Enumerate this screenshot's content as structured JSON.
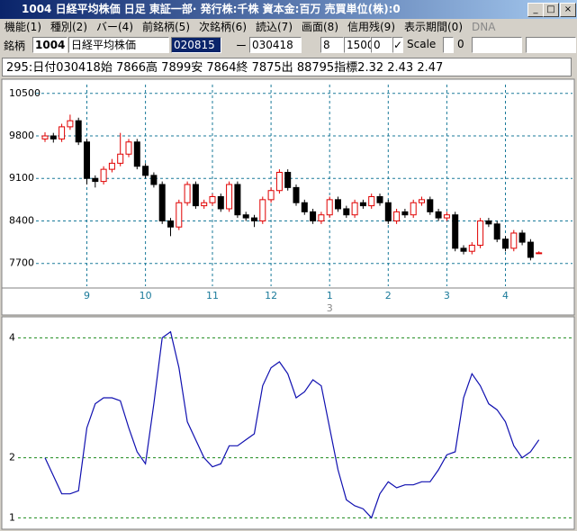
{
  "window": {
    "title": "1004 日経平均株価  日足  東証一部·  発行株:千株  資本金:百万  売買単位(株):0",
    "menu": [
      "機能(1)",
      "種別(2)",
      "バー(4)",
      "前銘柄(5)",
      "次銘柄(6)",
      "読込(7)",
      "画面(8)",
      "信用残(9)",
      "表示期間(0)",
      "DNA"
    ],
    "toolbar": {
      "label": "銘柄",
      "code": "1004",
      "name": "日経平均株価",
      "from": "020815",
      "dash": "ー",
      "to": "030418",
      "f1": "8",
      "f2": "1500",
      "f3": "0",
      "scale": "Scale",
      "f4": "0"
    },
    "info": "295:日付030418始 7866高 7899安 7864終 7875出 88795指標2.32  2.43  2.47"
  },
  "chart_data": [
    {
      "type": "candlestick",
      "up_color": "#e00000",
      "down_color": "#000000",
      "grid": true,
      "grid_color": "#1a7a9a",
      "categories": [
        null,
        null,
        null,
        null,
        null,
        "9",
        null,
        null,
        null,
        null,
        null,
        null,
        "10",
        null,
        null,
        null,
        null,
        null,
        null,
        null,
        "11",
        null,
        null,
        null,
        null,
        null,
        null,
        "12",
        null,
        null,
        null,
        null,
        null,
        null,
        "1",
        null,
        null,
        null,
        null,
        null,
        null,
        "2",
        null,
        null,
        null,
        null,
        null,
        null,
        "3",
        null,
        null,
        null,
        null,
        null,
        null,
        "4",
        null,
        null,
        null,
        null
      ],
      "x_sublabel": "3",
      "open": [
        9750,
        9800,
        9750,
        9950,
        10050,
        9700,
        9100,
        9050,
        9250,
        9350,
        9500,
        9700,
        9300,
        9150,
        9000,
        8400,
        8300,
        8700,
        9000,
        8650,
        8700,
        8800,
        8600,
        9000,
        8500,
        8450,
        8400,
        8750,
        8900,
        9200,
        8950,
        8700,
        8550,
        8400,
        8500,
        8750,
        8600,
        8500,
        8700,
        8650,
        8800,
        8700,
        8400,
        8550,
        8500,
        8700,
        8750,
        8550,
        8450,
        8500,
        7950,
        7900,
        8000,
        8400,
        8350,
        8100,
        7950,
        8200,
        8050,
        7866
      ],
      "high": [
        9860,
        9850,
        10000,
        10150,
        10100,
        9750,
        9150,
        9300,
        9420,
        9850,
        9750,
        9750,
        9350,
        9200,
        9050,
        8450,
        8750,
        9050,
        9050,
        8750,
        8850,
        8850,
        9050,
        9050,
        8550,
        8500,
        8800,
        8950,
        9250,
        9250,
        9000,
        8750,
        8600,
        8550,
        8800,
        8800,
        8650,
        8750,
        8750,
        8850,
        8850,
        8750,
        8600,
        8600,
        8750,
        8800,
        8800,
        8600,
        8550,
        8550,
        8000,
        8050,
        8450,
        8450,
        8400,
        8150,
        8250,
        8250,
        8100,
        7899
      ],
      "low": [
        9700,
        9690,
        9700,
        9900,
        9650,
        9000,
        8950,
        9000,
        9200,
        9300,
        9450,
        9250,
        9100,
        8950,
        8350,
        8150,
        8250,
        8650,
        8600,
        8600,
        8650,
        8550,
        8550,
        8450,
        8400,
        8300,
        8350,
        8700,
        8850,
        8900,
        8650,
        8500,
        8350,
        8350,
        8450,
        8550,
        8450,
        8450,
        8600,
        8600,
        8650,
        8350,
        8350,
        8450,
        8450,
        8650,
        8500,
        8400,
        8400,
        7900,
        7850,
        7850,
        7950,
        8300,
        8050,
        7900,
        7900,
        8000,
        7750,
        7864
      ],
      "close": [
        9800,
        9750,
        9950,
        10050,
        9700,
        9100,
        9050,
        9250,
        9350,
        9500,
        9700,
        9300,
        9150,
        9000,
        8400,
        8300,
        8700,
        9000,
        8650,
        8700,
        8800,
        8600,
        9000,
        8500,
        8450,
        8400,
        8750,
        8900,
        9200,
        8950,
        8700,
        8550,
        8400,
        8500,
        8750,
        8600,
        8500,
        8700,
        8650,
        8800,
        8700,
        8400,
        8550,
        8500,
        8700,
        8750,
        8550,
        8450,
        8500,
        7950,
        7900,
        8000,
        8400,
        8350,
        8100,
        7950,
        8200,
        8050,
        7800,
        7875
      ],
      "ylim": [
        7325,
        10645
      ],
      "yticks": [
        7700,
        8400,
        9100,
        9800,
        10500
      ]
    },
    {
      "type": "line",
      "color": "#1010b0",
      "grid": true,
      "grid_color": "#1a8a1a",
      "values": [
        2.0,
        1.7,
        1.4,
        1.4,
        1.45,
        2.5,
        2.9,
        3.0,
        3.0,
        2.95,
        2.5,
        2.1,
        1.9,
        2.9,
        4.0,
        4.1,
        3.5,
        2.6,
        2.3,
        2.0,
        1.85,
        1.9,
        2.2,
        2.2,
        2.3,
        2.4,
        3.2,
        3.5,
        3.6,
        3.4,
        3.0,
        3.1,
        3.3,
        3.2,
        2.5,
        1.8,
        1.3,
        1.2,
        1.15,
        1.0,
        1.4,
        1.6,
        1.5,
        1.55,
        1.55,
        1.6,
        1.6,
        1.8,
        2.05,
        2.1,
        3.0,
        3.4,
        3.2,
        2.9,
        2.8,
        2.6,
        2.2,
        2.0,
        2.1,
        2.3
      ],
      "ylim": [
        0.84,
        4.26
      ],
      "yticks": [
        1,
        2,
        4
      ]
    }
  ]
}
